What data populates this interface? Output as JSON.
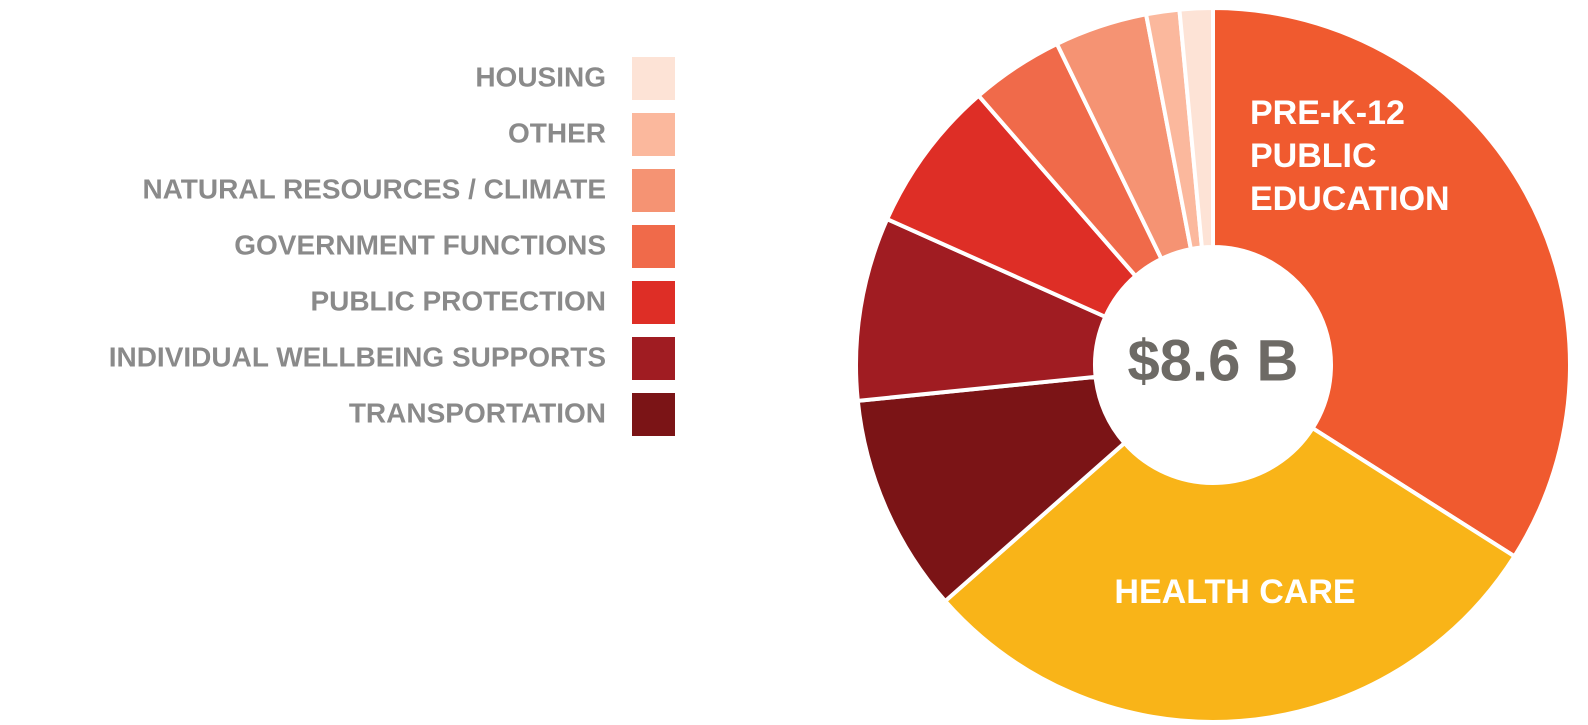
{
  "chart_data": {
    "type": "donut",
    "center_label": "$8.6 B",
    "categories": [
      "PRE-K-12 PUBLIC EDUCATION",
      "HEALTH CARE",
      "TRANSPORTATION",
      "INDIVIDUAL WELLBEING SUPPORTS",
      "PUBLIC PROTECTION",
      "GOVERNMENT FUNCTIONS",
      "NATURAL RESOURCES / CLIMATE",
      "OTHER",
      "HOUSING"
    ],
    "values": [
      34,
      29.5,
      9.9,
      8.3,
      6.9,
      4.2,
      4.2,
      1.5,
      1.5
    ],
    "colors": [
      "#f05a2f",
      "#f9b418",
      "#7b1416",
      "#a01c22",
      "#de2e26",
      "#f06a4a",
      "#f59373",
      "#fbb89d",
      "#fde3d6"
    ]
  }
}
